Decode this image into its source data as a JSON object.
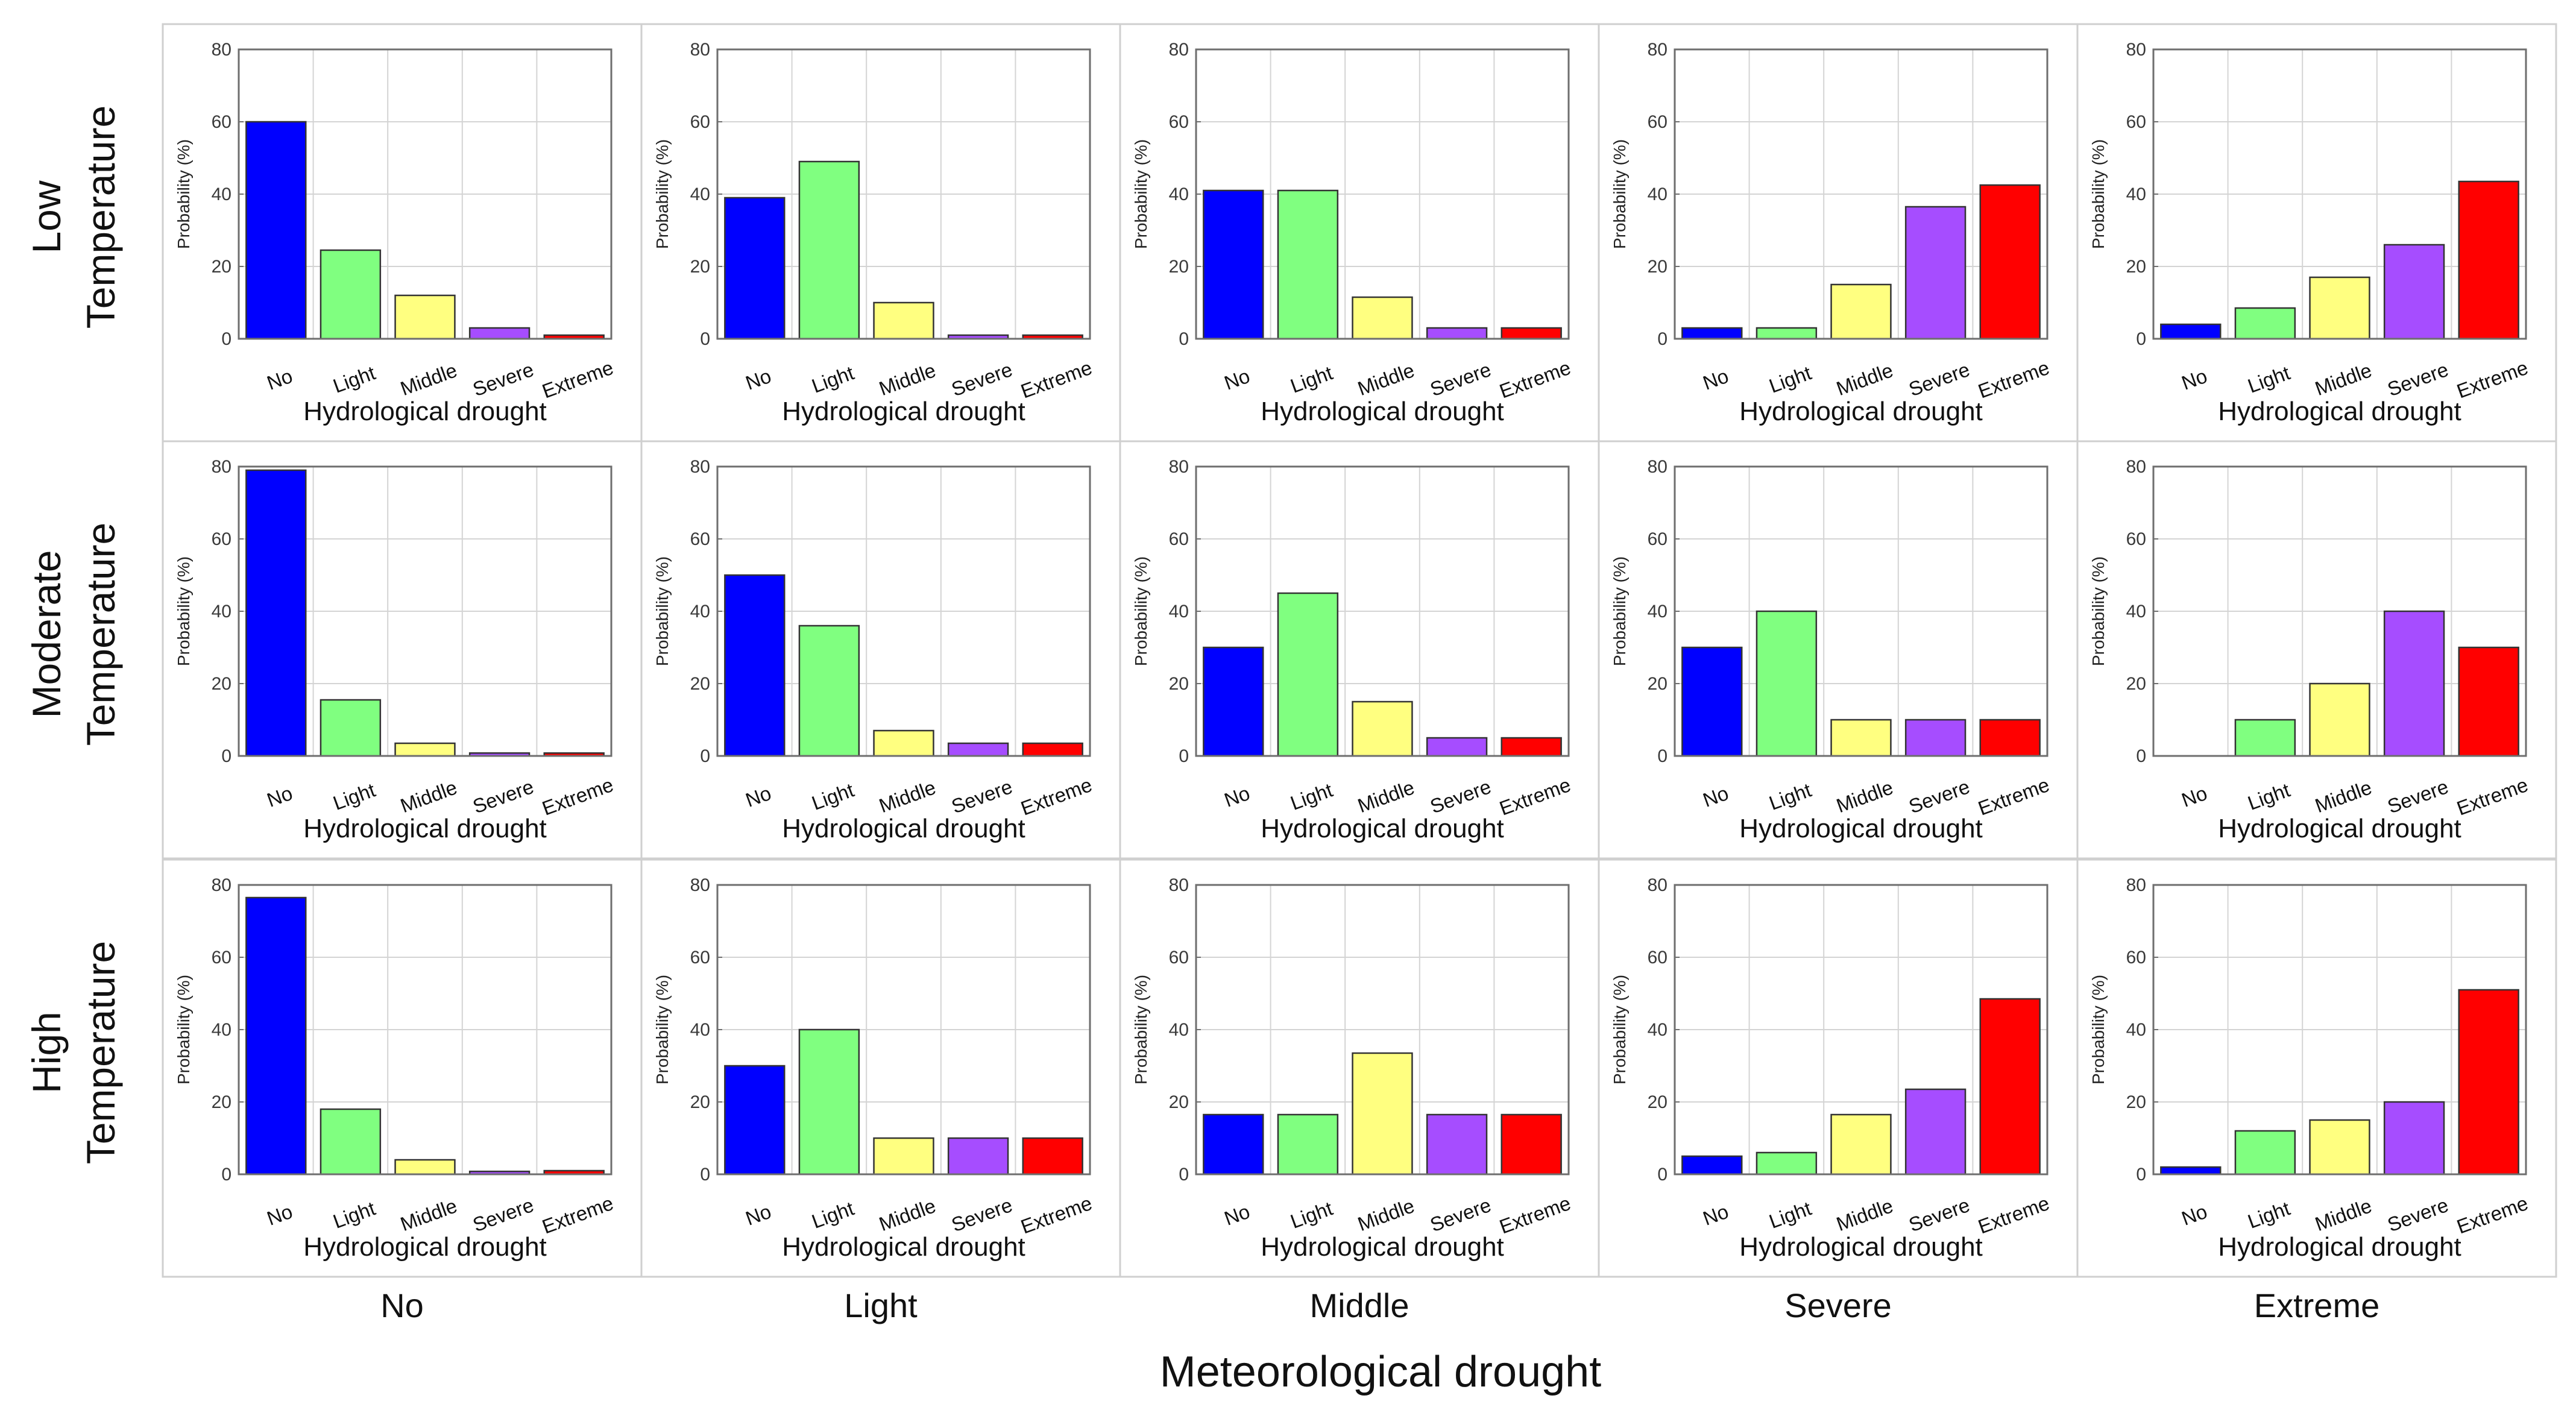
{
  "figure": {
    "x_title": "Meteorological drought",
    "row_labels": [
      [
        "Low",
        "Temperature"
      ],
      [
        "Moderate",
        "Temperature"
      ],
      [
        "High",
        "Temperature"
      ]
    ],
    "column_labels": [
      "No",
      "Light",
      "Middle",
      "Severe",
      "Extreme"
    ],
    "colors": {
      "No": "#0000ff",
      "Light": "#80ff80",
      "Middle": "#ffff80",
      "Severe": "#a64dff",
      "Extreme": "#ff0000"
    }
  },
  "chart_data": [
    {
      "type": "bar",
      "row": "Low Temperature",
      "meteorological": "No",
      "categories": [
        "No",
        "Light",
        "Middle",
        "Severe",
        "Extreme"
      ],
      "values": [
        60,
        24.5,
        12,
        3,
        1
      ],
      "xlabel": "Hydrological drought",
      "ylabel": "Probability (%)",
      "ylim": [
        0,
        80
      ],
      "yticks": [
        0,
        20,
        40,
        60,
        80
      ],
      "grid": true
    },
    {
      "type": "bar",
      "row": "Low Temperature",
      "meteorological": "Light",
      "categories": [
        "No",
        "Light",
        "Middle",
        "Severe",
        "Extreme"
      ],
      "values": [
        39,
        49,
        10,
        1,
        1
      ],
      "xlabel": "Hydrological drought",
      "ylabel": "Probability (%)",
      "ylim": [
        0,
        80
      ],
      "yticks": [
        0,
        20,
        40,
        60,
        80
      ],
      "grid": true
    },
    {
      "type": "bar",
      "row": "Low Temperature",
      "meteorological": "Middle",
      "categories": [
        "No",
        "Light",
        "Middle",
        "Severe",
        "Extreme"
      ],
      "values": [
        41,
        41,
        11.5,
        3,
        3
      ],
      "xlabel": "Hydrological drought",
      "ylabel": "Probability (%)",
      "ylim": [
        0,
        80
      ],
      "yticks": [
        0,
        20,
        40,
        60,
        80
      ],
      "grid": true
    },
    {
      "type": "bar",
      "row": "Low Temperature",
      "meteorological": "Severe",
      "categories": [
        "No",
        "Light",
        "Middle",
        "Severe",
        "Extreme"
      ],
      "values": [
        3,
        3,
        15,
        36.5,
        42.5
      ],
      "xlabel": "Hydrological drought",
      "ylabel": "Probability (%)",
      "ylim": [
        0,
        80
      ],
      "yticks": [
        0,
        20,
        40,
        60,
        80
      ],
      "grid": true
    },
    {
      "type": "bar",
      "row": "Low Temperature",
      "meteorological": "Extreme",
      "categories": [
        "No",
        "Light",
        "Middle",
        "Severe",
        "Extreme"
      ],
      "values": [
        4,
        8.5,
        17,
        26,
        43.5
      ],
      "xlabel": "Hydrological drought",
      "ylabel": "Probability (%)",
      "ylim": [
        0,
        80
      ],
      "yticks": [
        0,
        20,
        40,
        60,
        80
      ],
      "grid": true
    },
    {
      "type": "bar",
      "row": "Moderate Temperature",
      "meteorological": "No",
      "categories": [
        "No",
        "Light",
        "Middle",
        "Severe",
        "Extreme"
      ],
      "values": [
        79,
        15.5,
        3.5,
        0.8,
        0.8
      ],
      "xlabel": "Hydrological drought",
      "ylabel": "Probability (%)",
      "ylim": [
        0,
        80
      ],
      "yticks": [
        0,
        20,
        40,
        60,
        80
      ],
      "grid": true
    },
    {
      "type": "bar",
      "row": "Moderate Temperature",
      "meteorological": "Light",
      "categories": [
        "No",
        "Light",
        "Middle",
        "Severe",
        "Extreme"
      ],
      "values": [
        50,
        36,
        7,
        3.5,
        3.5
      ],
      "xlabel": "Hydrological drought",
      "ylabel": "Probability (%)",
      "ylim": [
        0,
        80
      ],
      "yticks": [
        0,
        20,
        40,
        60,
        80
      ],
      "grid": true
    },
    {
      "type": "bar",
      "row": "Moderate Temperature",
      "meteorological": "Middle",
      "categories": [
        "No",
        "Light",
        "Middle",
        "Severe",
        "Extreme"
      ],
      "values": [
        30,
        45,
        15,
        5,
        5
      ],
      "xlabel": "Hydrological drought",
      "ylabel": "Probability (%)",
      "ylim": [
        0,
        80
      ],
      "yticks": [
        0,
        20,
        40,
        60,
        80
      ],
      "grid": true
    },
    {
      "type": "bar",
      "row": "Moderate Temperature",
      "meteorological": "Severe",
      "categories": [
        "No",
        "Light",
        "Middle",
        "Severe",
        "Extreme"
      ],
      "values": [
        30,
        40,
        10,
        10,
        10
      ],
      "xlabel": "Hydrological drought",
      "ylabel": "Probability (%)",
      "ylim": [
        0,
        80
      ],
      "yticks": [
        0,
        20,
        40,
        60,
        80
      ],
      "grid": true
    },
    {
      "type": "bar",
      "row": "Moderate Temperature",
      "meteorological": "Extreme",
      "categories": [
        "No",
        "Light",
        "Middle",
        "Severe",
        "Extreme"
      ],
      "values": [
        0,
        10,
        20,
        40,
        30
      ],
      "xlabel": "Hydrological drought",
      "ylabel": "Probability (%)",
      "ylim": [
        0,
        80
      ],
      "yticks": [
        0,
        20,
        40,
        60,
        80
      ],
      "grid": true
    },
    {
      "type": "bar",
      "row": "High Temperature",
      "meteorological": "No",
      "categories": [
        "No",
        "Light",
        "Middle",
        "Severe",
        "Extreme"
      ],
      "values": [
        76.5,
        18,
        4,
        0.8,
        1
      ],
      "xlabel": "Hydrological drought",
      "ylabel": "Probability (%)",
      "ylim": [
        0,
        80
      ],
      "yticks": [
        0,
        20,
        40,
        60,
        80
      ],
      "grid": true
    },
    {
      "type": "bar",
      "row": "High Temperature",
      "meteorological": "Light",
      "categories": [
        "No",
        "Light",
        "Middle",
        "Severe",
        "Extreme"
      ],
      "values": [
        30,
        40,
        10,
        10,
        10
      ],
      "xlabel": "Hydrological drought",
      "ylabel": "Probability (%)",
      "ylim": [
        0,
        80
      ],
      "yticks": [
        0,
        20,
        40,
        60,
        80
      ],
      "grid": true
    },
    {
      "type": "bar",
      "row": "High Temperature",
      "meteorological": "Middle",
      "categories": [
        "No",
        "Light",
        "Middle",
        "Severe",
        "Extreme"
      ],
      "values": [
        16.5,
        16.5,
        33.5,
        16.5,
        16.5
      ],
      "xlabel": "Hydrological drought",
      "ylabel": "Probability (%)",
      "ylim": [
        0,
        80
      ],
      "yticks": [
        0,
        20,
        40,
        60,
        80
      ],
      "grid": true
    },
    {
      "type": "bar",
      "row": "High Temperature",
      "meteorological": "Severe",
      "categories": [
        "No",
        "Light",
        "Middle",
        "Severe",
        "Extreme"
      ],
      "values": [
        5,
        6,
        16.5,
        23.5,
        48.5
      ],
      "xlabel": "Hydrological drought",
      "ylabel": "Probability (%)",
      "ylim": [
        0,
        80
      ],
      "yticks": [
        0,
        20,
        40,
        60,
        80
      ],
      "grid": true
    },
    {
      "type": "bar",
      "row": "High Temperature",
      "meteorological": "Extreme",
      "categories": [
        "No",
        "Light",
        "Middle",
        "Severe",
        "Extreme"
      ],
      "values": [
        2,
        12,
        15,
        20,
        51
      ],
      "xlabel": "Hydrological drought",
      "ylabel": "Probability (%)",
      "ylim": [
        0,
        80
      ],
      "yticks": [
        0,
        20,
        40,
        60,
        80
      ],
      "grid": true
    }
  ]
}
